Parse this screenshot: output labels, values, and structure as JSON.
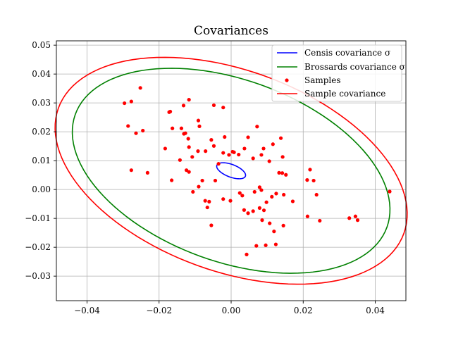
{
  "chart_data": {
    "type": "scatter",
    "title": "Covariances",
    "xlabel": "",
    "ylabel": "",
    "xlim": [
      -0.0485,
      0.0485
    ],
    "ylim": [
      -0.0385,
      0.0515
    ],
    "xticks": [
      -0.04,
      -0.02,
      0.0,
      0.02,
      0.04
    ],
    "xtick_labels": [
      "−0.04",
      "−0.02",
      "0.00",
      "0.02",
      "0.04"
    ],
    "yticks": [
      -0.03,
      -0.02,
      -0.01,
      0.0,
      0.01,
      0.02,
      0.03,
      0.04,
      0.05
    ],
    "ytick_labels": [
      "−0.03",
      "−0.02",
      "−0.01",
      "0.00",
      "0.01",
      "0.02",
      "0.03",
      "0.04",
      "0.05"
    ],
    "grid": true,
    "legend_position": "top-right",
    "series": [
      {
        "name": "Censis covariance σ",
        "kind": "ellipse",
        "color": "#0000ff",
        "center": [
          0.0,
          0.0065
        ],
        "semi_axes": [
          0.0044,
          0.0021
        ],
        "angle_deg": -28
      },
      {
        "name": "Brossards covariance σ",
        "kind": "ellipse",
        "color": "#008000",
        "center": [
          0.0,
          0.0065
        ],
        "semi_axes": [
          0.0478,
          0.0303
        ],
        "angle_deg": -30
      },
      {
        "name": "Samples",
        "kind": "points",
        "color": "#ff0000",
        "x": [
          -0.0252,
          -0.0296,
          -0.0277,
          -0.0172,
          -0.0132,
          -0.0117,
          -0.0048,
          -0.0022,
          -0.0286,
          -0.0264,
          -0.0245,
          -0.0169,
          -0.0138,
          -0.0127,
          -0.0091,
          -0.0163,
          -0.0131,
          -0.0119,
          -0.0088,
          -0.0183,
          -0.0117,
          -0.0092,
          -0.0071,
          -0.0055,
          -0.0022,
          -0.0018,
          0.0008,
          0.0021,
          -0.0142,
          -0.0108,
          -0.0048,
          -0.0035,
          -0.0006,
          0.0004,
          0.0037,
          0.0047,
          0.0061,
          0.0072,
          0.009,
          0.0116,
          0.0138,
          0.0084,
          0.0106,
          0.0143,
          0.0152,
          0.0133,
          0.0142,
          0.0219,
          0.0211,
          0.0229,
          0.0237,
          -0.0277,
          -0.0232,
          -0.0165,
          -0.0124,
          -0.0117,
          -0.0106,
          -0.009,
          -0.008,
          -0.0061,
          -0.0044,
          -0.0022,
          -0.0002,
          0.0024,
          0.0031,
          0.0065,
          0.0079,
          0.0084,
          0.0098,
          0.0113,
          0.0125,
          0.0146,
          0.0171,
          -0.0072,
          -0.0055,
          0.0036,
          0.0047,
          0.0061,
          0.0079,
          0.0091,
          0.0107,
          0.0119,
          0.0145,
          0.0212,
          0.0246,
          0.0328,
          0.0345,
          0.0351,
          0.044,
          0.0086,
          0.0124,
          0.0043,
          0.007,
          0.0096,
          -0.0066
        ],
        "y": [
          0.0352,
          0.0299,
          0.0305,
          0.0268,
          0.0291,
          0.0311,
          0.0292,
          0.0284,
          0.022,
          0.0195,
          0.0204,
          0.027,
          0.0212,
          0.0195,
          0.0239,
          0.0212,
          0.0193,
          0.0176,
          0.0219,
          0.0142,
          0.0147,
          0.0133,
          0.0133,
          0.0172,
          0.0127,
          0.0182,
          0.0129,
          0.0121,
          0.0102,
          0.0113,
          0.0151,
          0.0089,
          0.012,
          0.0131,
          0.0142,
          0.0181,
          0.0108,
          0.0218,
          0.0142,
          0.0157,
          0.0178,
          0.012,
          0.0098,
          0.0113,
          0.0051,
          0.0058,
          0.0057,
          0.0069,
          0.0033,
          0.0031,
          -0.0018,
          0.0067,
          0.0058,
          0.0032,
          0.0067,
          0.0061,
          -0.0008,
          0.001,
          0.0031,
          -0.0042,
          0.0031,
          -0.0033,
          -0.0039,
          -0.0012,
          -0.0021,
          -0.0008,
          0.0008,
          -0.0002,
          -0.0044,
          -0.0025,
          -0.0014,
          -0.0018,
          -0.0041,
          -0.0039,
          -0.0124,
          -0.0071,
          -0.0082,
          -0.0075,
          -0.0064,
          -0.0072,
          -0.0117,
          -0.0145,
          -0.0125,
          -0.0093,
          -0.0108,
          -0.0099,
          -0.0093,
          -0.0106,
          -0.0007,
          -0.0106,
          -0.019,
          -0.0225,
          -0.0195,
          -0.0193,
          -0.0062
        ]
      },
      {
        "name": "Sample covariance",
        "kind": "ellipse",
        "color": "#ff0000",
        "center": [
          0.0,
          0.0065
        ],
        "semi_axes": [
          0.053,
          0.0335
        ],
        "angle_deg": -30
      }
    ]
  }
}
